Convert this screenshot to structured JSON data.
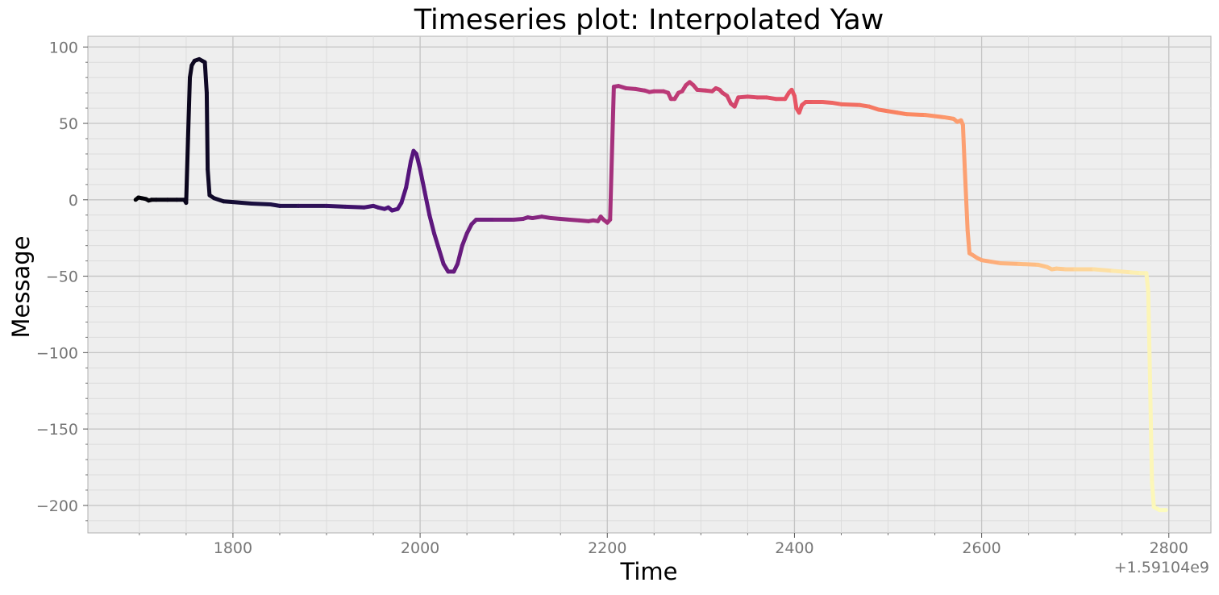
{
  "chart_data": {
    "type": "line",
    "title": "Timeseries plot: Interpolated Yaw",
    "xlabel": "Time",
    "ylabel": "Message",
    "x_offset_label": "+1.59104e9",
    "xlim": [
      1645,
      2845
    ],
    "ylim": [
      -218,
      107
    ],
    "x_ticks": [
      1800,
      2000,
      2200,
      2400,
      2600,
      2800
    ],
    "x_tick_labels": [
      "1800",
      "2000",
      "2200",
      "2400",
      "2600",
      "2800"
    ],
    "y_ticks": [
      100,
      50,
      0,
      -50,
      -100,
      -150,
      -200
    ],
    "y_tick_labels": [
      "100",
      "50",
      "0",
      "−50",
      "−100",
      "−150",
      "−200"
    ],
    "grid": true,
    "minor_grid": true,
    "background": "#eeeeee",
    "colormap": "magma",
    "series": [
      {
        "points": [
          [
            1696,
            0
          ],
          [
            1699,
            1.5
          ],
          [
            1703,
            1
          ],
          [
            1707,
            0.5
          ],
          [
            1710,
            -0.5
          ],
          [
            1713,
            0
          ],
          [
            1718,
            0
          ],
          [
            1730,
            0
          ],
          [
            1740,
            0
          ],
          [
            1748,
            0
          ],
          [
            1750,
            -2
          ],
          [
            1752,
            40
          ],
          [
            1754,
            80
          ],
          [
            1756,
            88
          ],
          [
            1759,
            91
          ],
          [
            1764,
            92
          ],
          [
            1767,
            91
          ],
          [
            1770,
            90
          ],
          [
            1772,
            70
          ],
          [
            1773,
            20
          ],
          [
            1775,
            3
          ],
          [
            1780,
            1
          ],
          [
            1790,
            -1
          ],
          [
            1800,
            -1.5
          ],
          [
            1820,
            -2.5
          ],
          [
            1840,
            -3
          ],
          [
            1850,
            -4
          ],
          [
            1870,
            -4
          ],
          [
            1900,
            -4
          ],
          [
            1920,
            -4.5
          ],
          [
            1940,
            -5
          ],
          [
            1950,
            -4
          ],
          [
            1955,
            -5
          ],
          [
            1962,
            -6
          ],
          [
            1966,
            -5
          ],
          [
            1970,
            -7
          ],
          [
            1976,
            -6
          ],
          [
            1980,
            -2
          ],
          [
            1985,
            8
          ],
          [
            1990,
            25
          ],
          [
            1993,
            32
          ],
          [
            1996,
            30
          ],
          [
            2000,
            20
          ],
          [
            2005,
            5
          ],
          [
            2010,
            -10
          ],
          [
            2015,
            -22
          ],
          [
            2020,
            -32
          ],
          [
            2025,
            -42
          ],
          [
            2030,
            -47
          ],
          [
            2036,
            -47
          ],
          [
            2040,
            -42
          ],
          [
            2045,
            -30
          ],
          [
            2050,
            -22
          ],
          [
            2055,
            -16
          ],
          [
            2060,
            -13
          ],
          [
            2080,
            -13
          ],
          [
            2100,
            -13
          ],
          [
            2110,
            -12.5
          ],
          [
            2115,
            -11.5
          ],
          [
            2120,
            -12
          ],
          [
            2130,
            -11
          ],
          [
            2140,
            -12
          ],
          [
            2160,
            -13
          ],
          [
            2170,
            -13.5
          ],
          [
            2180,
            -14
          ],
          [
            2185,
            -13.5
          ],
          [
            2190,
            -14
          ],
          [
            2193,
            -11
          ],
          [
            2196,
            -13
          ],
          [
            2200,
            -15
          ],
          [
            2203,
            -13
          ],
          [
            2207,
            74
          ],
          [
            2212,
            74.5
          ],
          [
            2220,
            73
          ],
          [
            2230,
            72.5
          ],
          [
            2240,
            71.5
          ],
          [
            2245,
            70.5
          ],
          [
            2250,
            71
          ],
          [
            2260,
            71
          ],
          [
            2265,
            70
          ],
          [
            2268,
            66
          ],
          [
            2272,
            66
          ],
          [
            2276,
            70
          ],
          [
            2280,
            71
          ],
          [
            2284,
            75
          ],
          [
            2288,
            77
          ],
          [
            2292,
            75
          ],
          [
            2296,
            72
          ],
          [
            2305,
            71.5
          ],
          [
            2312,
            71
          ],
          [
            2316,
            73
          ],
          [
            2320,
            72
          ],
          [
            2323,
            70
          ],
          [
            2328,
            68
          ],
          [
            2332,
            63
          ],
          [
            2336,
            61
          ],
          [
            2340,
            67
          ],
          [
            2350,
            67.5
          ],
          [
            2360,
            67
          ],
          [
            2370,
            67
          ],
          [
            2380,
            66
          ],
          [
            2390,
            66
          ],
          [
            2394,
            70
          ],
          [
            2397,
            72
          ],
          [
            2400,
            68
          ],
          [
            2402,
            60
          ],
          [
            2405,
            57
          ],
          [
            2408,
            62
          ],
          [
            2412,
            64
          ],
          [
            2420,
            64
          ],
          [
            2430,
            64
          ],
          [
            2440,
            63.5
          ],
          [
            2450,
            62.5
          ],
          [
            2470,
            62
          ],
          [
            2480,
            61
          ],
          [
            2490,
            59
          ],
          [
            2500,
            58
          ],
          [
            2510,
            57
          ],
          [
            2520,
            56
          ],
          [
            2540,
            55.5
          ],
          [
            2560,
            54
          ],
          [
            2570,
            53
          ],
          [
            2574,
            51
          ],
          [
            2578,
            52
          ],
          [
            2580,
            49
          ],
          [
            2582,
            20
          ],
          [
            2585,
            -20
          ],
          [
            2587,
            -35
          ],
          [
            2590,
            -36
          ],
          [
            2595,
            -38
          ],
          [
            2600,
            -39.5
          ],
          [
            2610,
            -40.5
          ],
          [
            2620,
            -41.5
          ],
          [
            2640,
            -42
          ],
          [
            2660,
            -42.5
          ],
          [
            2670,
            -44
          ],
          [
            2675,
            -45.5
          ],
          [
            2680,
            -45
          ],
          [
            2690,
            -45.5
          ],
          [
            2700,
            -45.5
          ],
          [
            2720,
            -45.5
          ],
          [
            2740,
            -46.5
          ],
          [
            2760,
            -47.5
          ],
          [
            2770,
            -48
          ],
          [
            2776,
            -48
          ],
          [
            2778,
            -60
          ],
          [
            2780,
            -120
          ],
          [
            2782,
            -185
          ],
          [
            2784,
            -201
          ],
          [
            2790,
            -203
          ],
          [
            2797,
            -203
          ]
        ]
      }
    ]
  }
}
